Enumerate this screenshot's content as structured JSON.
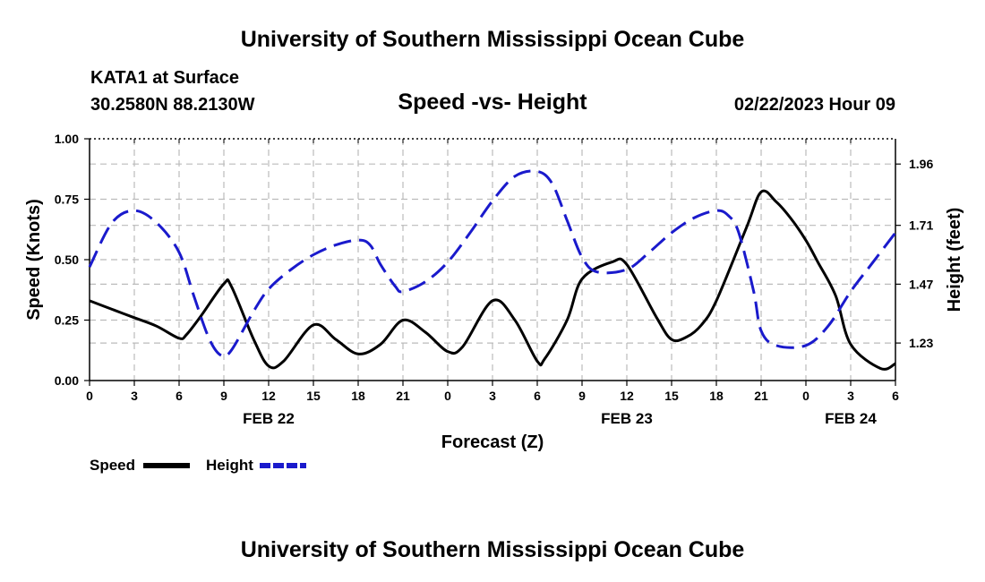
{
  "header": {
    "main_title": "University of Southern Mississippi Ocean Cube",
    "station": "KATA1 at Surface",
    "coords": "30.2580N  88.2130W",
    "plot_title": "Speed -vs- Height",
    "datetime": "02/22/2023 Hour 09",
    "footer_title": "University of Southern Mississippi Ocean Cube"
  },
  "legend": {
    "speed_label": "Speed",
    "height_label": "Height"
  },
  "colors": {
    "speed": "#000000",
    "height": "#1a1acc",
    "grid": "#bbbbbb"
  },
  "chart_data": {
    "type": "line",
    "title": "Speed -vs- Height",
    "xlabel": "Forecast (Z)",
    "ylabel": "Speed (Knots)",
    "y2label": "Height (feet)",
    "x_range_hours": [
      0,
      54
    ],
    "x_tick_hours": [
      0,
      3,
      6,
      9,
      12,
      15,
      18,
      21,
      24,
      27,
      30,
      33,
      36,
      39,
      42,
      45,
      48,
      51,
      54
    ],
    "x_tick_labels": [
      "0",
      "3",
      "6",
      "9",
      "12",
      "15",
      "18",
      "21",
      "0",
      "3",
      "6",
      "9",
      "12",
      "15",
      "18",
      "21",
      "0",
      "3",
      "6"
    ],
    "date_labels": [
      {
        "hour": 12,
        "label": "FEB 22"
      },
      {
        "hour": 36,
        "label": "FEB 23"
      },
      {
        "hour": 51,
        "label": "FEB 24"
      }
    ],
    "ylim": [
      0,
      1.0
    ],
    "y_ticks": [
      0,
      0.25,
      0.5,
      0.75,
      1.0
    ],
    "y_tick_labels": [
      "0.00",
      "0.25",
      "0.50",
      "0.75",
      "1.00"
    ],
    "y2lim": [
      1.077,
      2.063
    ],
    "y2_ticks": [
      1.23,
      1.47,
      1.71,
      1.96
    ],
    "y2_tick_labels": [
      "1.23",
      "1.47",
      "1.71",
      "1.96"
    ],
    "series": [
      {
        "name": "Speed",
        "axis": "left",
        "style": "solid",
        "x": [
          0,
          1.5,
          3,
          4.5,
          6,
          6.5,
          7.5,
          9,
          9.5,
          11,
          12,
          13,
          15,
          16.5,
          18,
          19.5,
          21,
          22.5,
          24,
          25,
          27,
          28.5,
          30,
          30.5,
          32,
          33,
          35,
          36,
          38,
          39,
          40,
          41,
          42,
          44,
          45,
          46,
          47,
          48,
          48.8,
          50,
          51,
          53,
          54
        ],
        "values": [
          0.33,
          0.295,
          0.26,
          0.225,
          0.175,
          0.19,
          0.27,
          0.4,
          0.39,
          0.17,
          0.06,
          0.08,
          0.23,
          0.17,
          0.11,
          0.15,
          0.25,
          0.2,
          0.12,
          0.14,
          0.33,
          0.25,
          0.08,
          0.09,
          0.25,
          0.42,
          0.49,
          0.48,
          0.26,
          0.17,
          0.18,
          0.23,
          0.33,
          0.63,
          0.78,
          0.74,
          0.67,
          0.58,
          0.49,
          0.35,
          0.15,
          0.05,
          0.07
        ]
      },
      {
        "name": "Height",
        "axis": "right",
        "style": "dashed",
        "x": [
          0,
          1.5,
          3,
          4.5,
          6,
          7,
          8,
          8.8,
          9.5,
          11,
          12,
          13.5,
          15,
          16.5,
          18,
          18.8,
          19.5,
          20.5,
          21,
          22.5,
          24,
          25.5,
          27,
          28.5,
          30,
          31,
          32,
          33,
          34,
          36,
          37.5,
          39,
          40.5,
          42,
          42.8,
          43.5,
          44.5,
          45,
          46,
          48,
          49.5,
          51,
          52.5,
          54
        ],
        "values": [
          1.54,
          1.72,
          1.77,
          1.72,
          1.6,
          1.42,
          1.25,
          1.18,
          1.2,
          1.36,
          1.45,
          1.53,
          1.59,
          1.63,
          1.65,
          1.63,
          1.55,
          1.46,
          1.44,
          1.48,
          1.56,
          1.68,
          1.81,
          1.91,
          1.93,
          1.88,
          1.73,
          1.58,
          1.52,
          1.53,
          1.6,
          1.68,
          1.74,
          1.77,
          1.75,
          1.68,
          1.44,
          1.28,
          1.22,
          1.22,
          1.3,
          1.44,
          1.56,
          1.68
        ]
      }
    ]
  }
}
